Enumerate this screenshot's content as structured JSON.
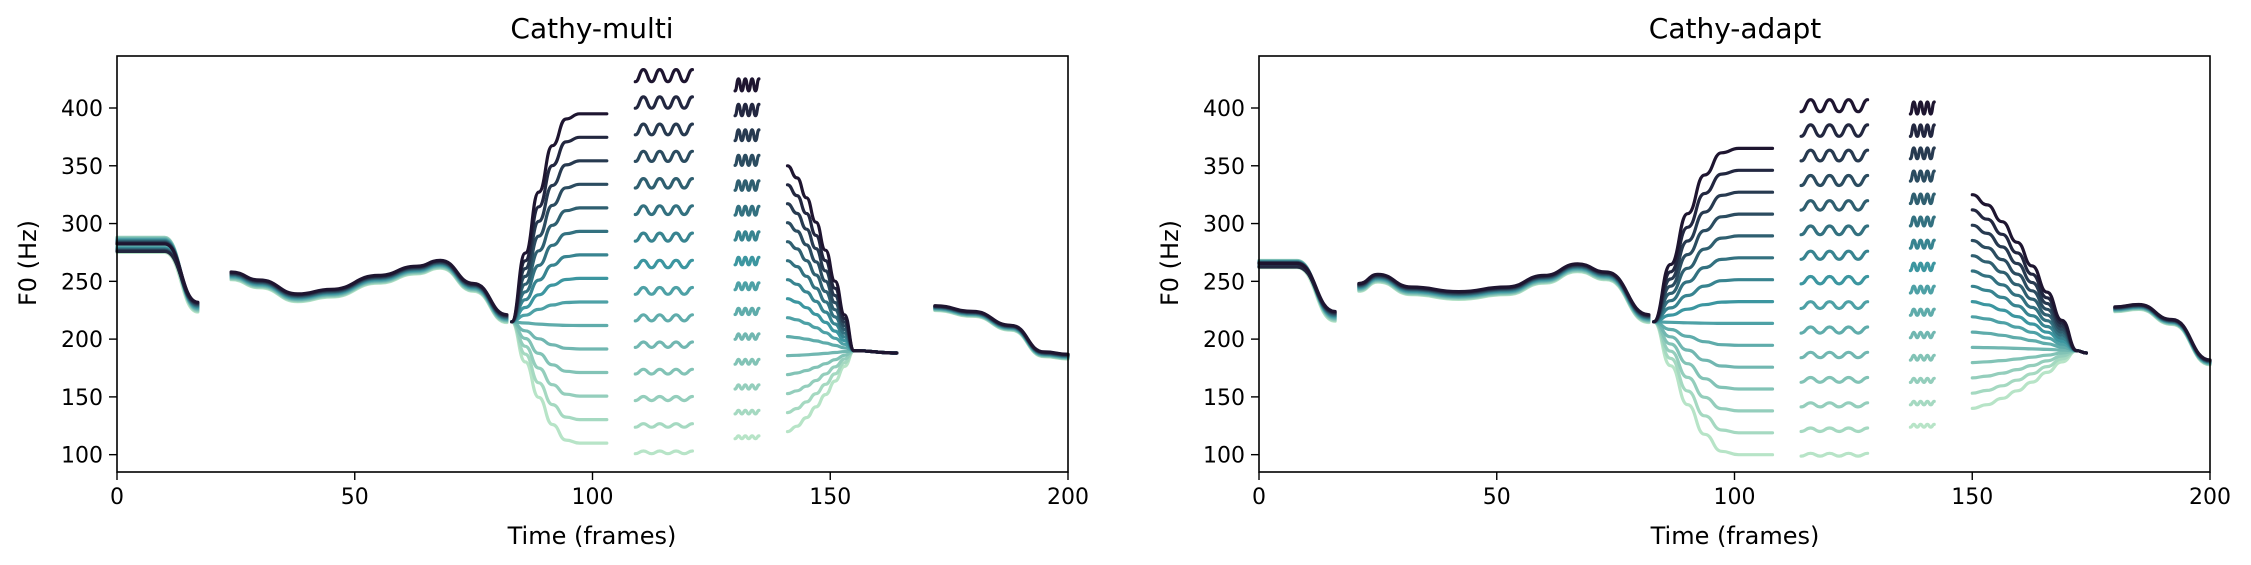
{
  "chart_data": [
    {
      "type": "line",
      "title": "Cathy-multi",
      "xlabel": "Time (frames)",
      "ylabel": "F0 (Hz)",
      "xlim": [
        0,
        200
      ],
      "ylim": [
        85,
        445
      ],
      "xticks": [
        0,
        50,
        100,
        150,
        200
      ],
      "yticks": [
        100,
        150,
        200,
        250,
        300,
        350,
        400
      ],
      "grid": false,
      "legend": "none",
      "series_count": 15,
      "colormap_low": "#b7e4c7",
      "colormap_high": "#1e1530",
      "bold_series_color": "#141018",
      "shared_curve": [
        [
          24,
          255
        ],
        [
          30,
          248
        ],
        [
          38,
          236
        ],
        [
          45,
          240
        ],
        [
          55,
          252
        ],
        [
          63,
          260
        ],
        [
          68,
          265
        ],
        [
          75,
          245
        ],
        [
          82,
          218
        ]
      ],
      "start_segment": {
        "x": [
          0,
          10,
          17
        ],
        "y_top": 288,
        "y_bottom": 275,
        "y_end": 228
      },
      "end_segment": [
        [
          172,
          227
        ],
        [
          180,
          222
        ],
        [
          188,
          210
        ],
        [
          195,
          187
        ],
        [
          200,
          185
        ]
      ],
      "end_pitch": 190,
      "converge_x": 155,
      "phrase_segments": [
        {
          "x0": 83,
          "x1": 103,
          "hi": 395,
          "lo": 110
        },
        {
          "x0": 109,
          "x1": 121,
          "hi": 428,
          "lo": 102
        },
        {
          "x0": 130,
          "x1": 135,
          "hi": 420,
          "lo": 115
        },
        {
          "x0": 141,
          "x1": 155,
          "hi": 350,
          "lo": 120
        }
      ]
    },
    {
      "type": "line",
      "title": "Cathy-adapt",
      "xlabel": "Time (frames)",
      "ylabel": "F0 (Hz)",
      "xlim": [
        0,
        200
      ],
      "ylim": [
        85,
        445
      ],
      "xticks": [
        0,
        50,
        100,
        150,
        200
      ],
      "yticks": [
        100,
        150,
        200,
        250,
        300,
        350,
        400
      ],
      "grid": false,
      "legend": "none",
      "series_count": 15,
      "colormap_low": "#b7e4c7",
      "colormap_high": "#1e1530",
      "bold_series_color": "#141018",
      "shared_curve": [
        [
          21,
          245
        ],
        [
          25,
          253
        ],
        [
          32,
          242
        ],
        [
          42,
          238
        ],
        [
          52,
          242
        ],
        [
          60,
          252
        ],
        [
          67,
          262
        ],
        [
          73,
          255
        ],
        [
          82,
          218
        ]
      ],
      "start_segment": {
        "x": [
          0,
          8,
          16
        ],
        "y_top": 268,
        "y_bottom": 262,
        "y_end": 220
      },
      "end_segment": [
        [
          180,
          226
        ],
        [
          185,
          228
        ],
        [
          192,
          215
        ],
        [
          200,
          180
        ]
      ],
      "end_pitch": 190,
      "converge_x": 165,
      "phrase_segments": [
        {
          "x0": 83,
          "x1": 108,
          "hi": 365,
          "lo": 100
        },
        {
          "x0": 114,
          "x1": 128,
          "hi": 402,
          "lo": 100
        },
        {
          "x0": 137,
          "x1": 142,
          "hi": 400,
          "lo": 125
        },
        {
          "x0": 150,
          "x1": 172,
          "hi": 325,
          "lo": 140
        }
      ]
    }
  ]
}
